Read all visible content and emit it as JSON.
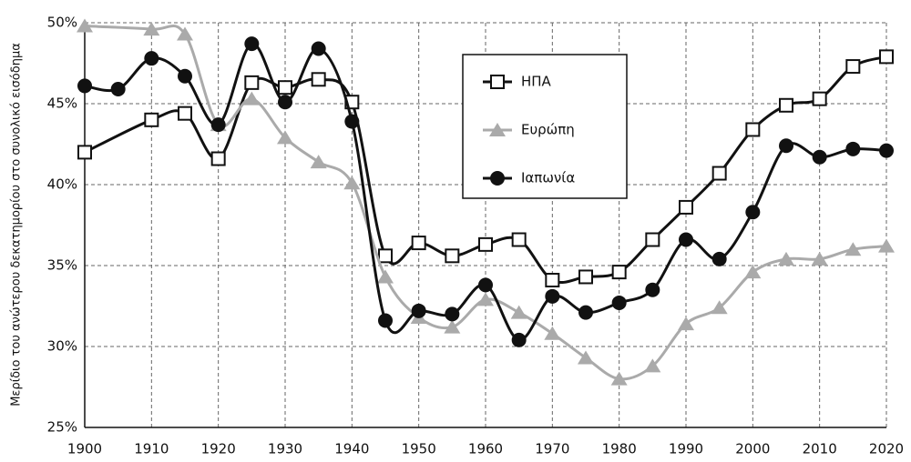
{
  "chart_data": {
    "type": "line",
    "y_label": "Μερίδιο του ανώτερου δεκατημορίου στο συνολικό εισόδημα",
    "xlim": [
      1900,
      2020
    ],
    "xticks": [
      1900,
      1910,
      1920,
      1930,
      1940,
      1950,
      1960,
      1970,
      1980,
      1990,
      2000,
      2010,
      2020
    ],
    "ylim": [
      25,
      50
    ],
    "yticks": [
      {
        "value": 25,
        "label": "25%"
      },
      {
        "value": 30,
        "label": "30%"
      },
      {
        "value": 35,
        "label": "35%"
      },
      {
        "value": 40,
        "label": "40%"
      },
      {
        "value": 45,
        "label": "45%"
      },
      {
        "value": 50,
        "label": "50%"
      }
    ],
    "grid": true,
    "legend": "upper center",
    "series": [
      {
        "name": "ΗΠΑ",
        "color": "#111111",
        "marker": "square",
        "x": [
          1900,
          1910,
          1915,
          1920,
          1925,
          1930,
          1935,
          1940,
          1945,
          1950,
          1955,
          1960,
          1965,
          1970,
          1975,
          1980,
          1985,
          1990,
          1995,
          2000,
          2005,
          2010,
          2015,
          2020
        ],
        "values": [
          42.0,
          44.0,
          44.4,
          41.6,
          46.3,
          46.0,
          46.5,
          45.1,
          35.6,
          36.4,
          35.6,
          36.3,
          36.6,
          34.1,
          34.3,
          34.6,
          36.6,
          38.6,
          40.7,
          43.4,
          44.9,
          45.3,
          47.3,
          47.9
        ]
      },
      {
        "name": "Ευρώπη",
        "color": "#aaaaaa",
        "marker": "triangle",
        "x": [
          1900,
          1910,
          1915,
          1920,
          1925,
          1930,
          1935,
          1940,
          1945,
          1950,
          1955,
          1960,
          1965,
          1970,
          1975,
          1980,
          1985,
          1990,
          1995,
          2000,
          2005,
          2010,
          2015,
          2020
        ],
        "values": [
          49.8,
          49.6,
          49.3,
          43.7,
          45.3,
          42.9,
          41.4,
          40.1,
          34.3,
          31.8,
          31.2,
          32.9,
          32.1,
          30.8,
          29.3,
          28.0,
          28.8,
          31.4,
          32.4,
          34.6,
          35.4,
          35.4,
          36.0,
          36.2
        ]
      },
      {
        "name": "Ιαπωνία",
        "color": "#111111",
        "marker": "circle",
        "x": [
          1900,
          1905,
          1910,
          1915,
          1920,
          1925,
          1930,
          1935,
          1940,
          1945,
          1950,
          1955,
          1960,
          1965,
          1970,
          1975,
          1980,
          1985,
          1990,
          1995,
          2000,
          2005,
          2010,
          2015,
          2020
        ],
        "values": [
          46.1,
          45.9,
          47.8,
          46.7,
          43.7,
          48.7,
          45.1,
          48.4,
          43.9,
          31.6,
          32.2,
          32.0,
          33.8,
          30.4,
          33.1,
          32.1,
          32.7,
          33.5,
          36.6,
          35.4,
          38.3,
          42.4,
          41.7,
          42.2,
          42.1
        ]
      }
    ]
  }
}
